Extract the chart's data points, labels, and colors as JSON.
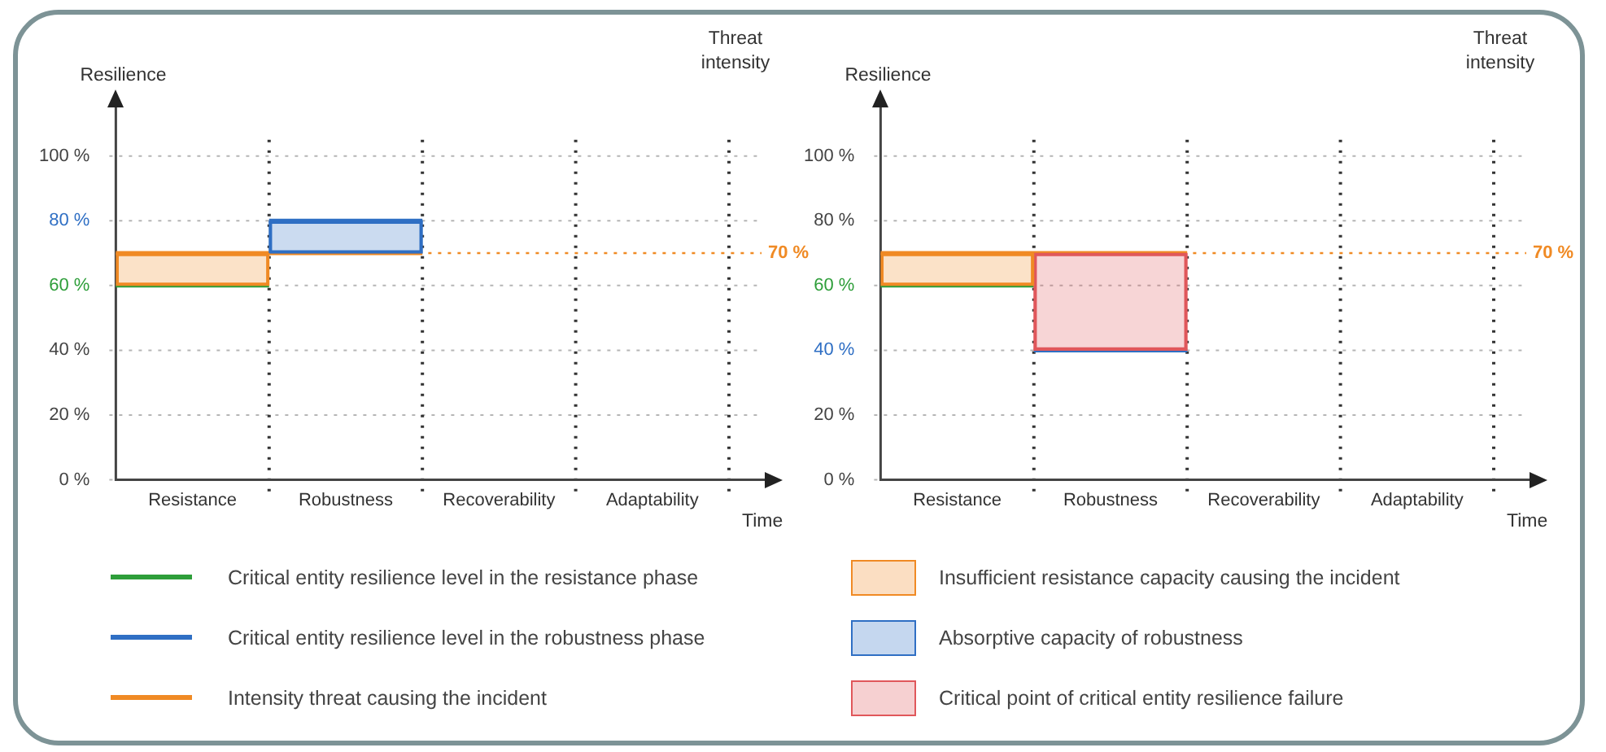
{
  "chart_data": [
    {
      "type": "line",
      "ylabel": "Resilience",
      "xlabel": "Time",
      "annotations": [
        "Threat intensity"
      ],
      "ylim": [
        0,
        115
      ],
      "yticks": [
        {
          "value": 0,
          "label": "0 %"
        },
        {
          "value": 20,
          "label": "20 %"
        },
        {
          "value": 40,
          "label": "40 %"
        },
        {
          "value": 60,
          "label": "60 %"
        },
        {
          "value": 80,
          "label": "80 %"
        },
        {
          "value": 100,
          "label": "100 %"
        }
      ],
      "categories": [
        null,
        "Resistance",
        null,
        "Robustness",
        null,
        "Recoverability",
        null,
        "Adaptability",
        null
      ],
      "grid": true,
      "legend": "bottom",
      "marker": "none",
      "line_style": "solid",
      "ref_lines": [
        {
          "axis": "y",
          "value": 70,
          "label": "70 %",
          "color": "#f08a24",
          "line_style": "dotted"
        }
      ],
      "series": [
        {
          "name": "Critical entity resilience level in the resistance phase",
          "color": "#2e9e3a",
          "values": [
            60,
            60,
            60,
            null,
            null,
            null,
            null,
            null,
            null
          ]
        },
        {
          "name": "Critical entity resilience level in the robustness phase",
          "color": "#2f6fc4",
          "values": [
            null,
            null,
            80,
            80,
            80,
            null,
            null,
            null,
            null
          ]
        },
        {
          "name": "Intensity threat causing the incident",
          "color": "#f08a24",
          "values": [
            70,
            70,
            70,
            70,
            70,
            null,
            null,
            null,
            null
          ]
        },
        {
          "type": "bar",
          "name": "Insufficient resistance capacity causing the incident",
          "color": "#f08a24",
          "values": [
            null,
            10,
            null,
            null,
            null,
            null,
            null,
            null,
            null
          ],
          "base": [
            null,
            60,
            null,
            null,
            null,
            null,
            null,
            null,
            null
          ]
        },
        {
          "type": "bar",
          "name": "Absorptive capacity of robustness",
          "color": "#2f6fc4",
          "values": [
            null,
            null,
            null,
            10,
            null,
            null,
            null,
            null,
            null
          ],
          "base": [
            null,
            null,
            null,
            70,
            null,
            null,
            null,
            null,
            null
          ]
        }
      ]
    },
    {
      "type": "line",
      "ylabel": "Resilience",
      "xlabel": "Time",
      "annotations": [
        "Threat intensity"
      ],
      "ylim": [
        0,
        115
      ],
      "yticks": [
        {
          "value": 0,
          "label": "0 %"
        },
        {
          "value": 20,
          "label": "20 %"
        },
        {
          "value": 40,
          "label": "40 %"
        },
        {
          "value": 60,
          "label": "60 %"
        },
        {
          "value": 80,
          "label": "80 %"
        },
        {
          "value": 100,
          "label": "100 %"
        }
      ],
      "categories": [
        null,
        "Resistance",
        null,
        "Robustness",
        null,
        "Recoverability",
        null,
        "Adaptability",
        null
      ],
      "grid": true,
      "legend": "bottom",
      "marker": "none",
      "line_style": "solid",
      "ref_lines": [
        {
          "axis": "y",
          "value": 70,
          "label": "70 %",
          "color": "#f08a24",
          "line_style": "dotted"
        }
      ],
      "series": [
        {
          "type": "bar",
          "color": "#f08a24",
          "values": [
            null,
            10,
            null,
            null,
            null,
            null,
            null,
            null,
            null
          ],
          "base": [
            null,
            60,
            null,
            null,
            null,
            null,
            null,
            null,
            null
          ]
        },
        {
          "type": "bar",
          "name": "Critical point of critical entity resilience failure",
          "color": "#e0575b",
          "values": [
            null,
            null,
            null,
            30,
            null,
            null,
            null,
            null,
            null
          ],
          "base": [
            null,
            null,
            null,
            40,
            null,
            null,
            null,
            null,
            null
          ]
        },
        {
          "color": "#2e9e3a",
          "values": [
            60,
            60,
            60,
            null,
            null,
            null,
            null,
            null,
            null
          ]
        },
        {
          "color": "#2f6fc4",
          "values": [
            null,
            null,
            40,
            40,
            40,
            null,
            null,
            null,
            null
          ]
        },
        {
          "color": "#f08a24",
          "values": [
            70,
            70,
            70,
            70,
            70,
            null,
            null,
            null,
            null
          ]
        }
      ]
    }
  ]
}
